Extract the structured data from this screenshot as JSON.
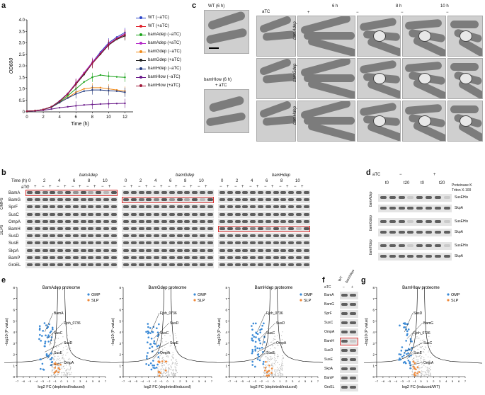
{
  "panels": {
    "a": "a",
    "b": "b",
    "c": "c",
    "d": "d",
    "e": "e",
    "f": "f",
    "g": "g"
  },
  "panel_a": {
    "ylabel": "OD600",
    "xlabel": "Time (h)",
    "xticks": [
      "0",
      "2",
      "4",
      "6",
      "8",
      "10",
      "12"
    ],
    "yticks": [
      "0",
      "0.5",
      "1.0",
      "1.5",
      "2.0",
      "2.5",
      "3.0",
      "3.5",
      "4.0"
    ],
    "legend": [
      {
        "label": "WT (−aTC)",
        "color": "#2a44c8"
      },
      {
        "label": "WT (+aTC)",
        "color": "#e0202a"
      },
      {
        "label": "bamAdep (−aTC)",
        "color": "#1aa31a"
      },
      {
        "label": "bamAdep (+aTC)",
        "color": "#b429c8"
      },
      {
        "label": "bamGdep (−aTC)",
        "color": "#f08a1a"
      },
      {
        "label": "bamGdep (+aTC)",
        "color": "#222222"
      },
      {
        "label": "bamHdep (−aTC)",
        "color": "#223a80"
      },
      {
        "label": "bamHlow (−aTC)",
        "color": "#6a1a8a"
      },
      {
        "label": "bamHlow (+aTC)",
        "color": "#a0183a"
      }
    ]
  },
  "chart_data": [
    {
      "type": "line",
      "title": "",
      "xlabel": "Time (h)",
      "ylabel": "OD600",
      "x": [
        0,
        1,
        2,
        3,
        4,
        5,
        6,
        7,
        8,
        9,
        10,
        11,
        12
      ],
      "xlim": [
        0,
        13
      ],
      "ylim": [
        0,
        4
      ],
      "series": [
        {
          "name": "WT (−aTC)",
          "values": [
            0.03,
            0.05,
            0.1,
            0.22,
            0.48,
            0.8,
            1.25,
            1.7,
            2.15,
            2.6,
            3.0,
            3.25,
            3.45
          ]
        },
        {
          "name": "WT (+aTC)",
          "values": [
            0.03,
            0.05,
            0.1,
            0.22,
            0.46,
            0.78,
            1.2,
            1.65,
            2.1,
            2.55,
            2.95,
            3.2,
            3.35
          ]
        },
        {
          "name": "bamAdep (−aTC)",
          "values": [
            0.03,
            0.05,
            0.1,
            0.2,
            0.42,
            0.7,
            1.0,
            1.3,
            1.5,
            1.6,
            1.55,
            1.52,
            1.5
          ]
        },
        {
          "name": "bamAdep (+aTC)",
          "values": [
            0.03,
            0.05,
            0.1,
            0.22,
            0.47,
            0.8,
            1.25,
            1.7,
            2.15,
            2.55,
            2.95,
            3.2,
            3.4
          ]
        },
        {
          "name": "bamGdep (−aTC)",
          "values": [
            0.03,
            0.05,
            0.1,
            0.2,
            0.4,
            0.62,
            0.85,
            1.0,
            1.05,
            1.05,
            1.0,
            0.95,
            0.9
          ]
        },
        {
          "name": "bamGdep (+aTC)",
          "values": [
            0.03,
            0.05,
            0.1,
            0.22,
            0.46,
            0.78,
            1.2,
            1.62,
            2.1,
            2.5,
            2.9,
            3.15,
            3.3
          ]
        },
        {
          "name": "bamHdep (−aTC)",
          "values": [
            0.03,
            0.05,
            0.1,
            0.2,
            0.4,
            0.6,
            0.78,
            0.9,
            0.95,
            0.95,
            0.92,
            0.9,
            0.85
          ]
        },
        {
          "name": "bamHlow (−aTC)",
          "values": [
            0.03,
            0.04,
            0.07,
            0.12,
            0.18,
            0.22,
            0.26,
            0.3,
            0.32,
            0.34,
            0.35,
            0.36,
            0.37
          ]
        },
        {
          "name": "bamHlow (+aTC)",
          "values": [
            0.03,
            0.05,
            0.1,
            0.22,
            0.46,
            0.78,
            1.22,
            1.66,
            2.1,
            2.52,
            2.92,
            3.18,
            3.35
          ]
        }
      ]
    }
  ],
  "panel_c": {
    "wt_title": "WT (6 h)",
    "bamHlow_title": "bamHlow (6 h)",
    "bamHlow_sub": "+ aTC",
    "aTC_label": "aTC",
    "cols": [
      "6 h",
      "8 h",
      "10 h"
    ],
    "signs": [
      "+",
      "−",
      "−",
      "−"
    ],
    "rows": [
      "bamAdep",
      "bamGdep",
      "bamHdep"
    ]
  },
  "panel_b": {
    "time_label": "Time (h)",
    "aTC_label": "aTC",
    "groups": [
      "bamAdep",
      "bamGdep",
      "bamHdep"
    ],
    "times": [
      "0",
      "2",
      "4",
      "6",
      "8",
      "10"
    ],
    "proteins": [
      "BamA",
      "BamG",
      "SprF",
      "SusC",
      "OmpA",
      "BamH",
      "SusD",
      "SusE",
      "SkpA",
      "BamP",
      "GroEL"
    ],
    "side_labels": [
      "OMPs",
      "SLPs"
    ]
  },
  "panel_d": {
    "aTC_label": "aTC",
    "minus": "−",
    "plus": "+",
    "times": [
      "t0",
      "t20",
      "t0",
      "t20"
    ],
    "protK": "Proteinase K",
    "triton": "Triton X-100",
    "rows": [
      "bamAdep",
      "bamGdep",
      "bamHdep"
    ],
    "row_labels": [
      "SusEHis",
      "SkpA",
      "SusEHis",
      "SkpA",
      "SusEHis",
      "SkpA"
    ]
  },
  "panel_e": [
    {
      "title": "BamAdep proteome",
      "labels": [
        "BamA",
        "Fjoh_0736",
        "SusC",
        "SusD",
        "SusE",
        "OmpA"
      ]
    },
    {
      "title": "BamGdep proteome",
      "labels": [
        "Fjoh_0736",
        "SusD",
        "SusC",
        "SusE",
        "OmpA"
      ]
    },
    {
      "title": "BamHdep proteome",
      "labels": [
        "Fjoh_0736",
        "SusD",
        "SusC",
        "OmpA",
        "SusE"
      ]
    }
  ],
  "volcano": {
    "ylabel": "−log10 (P value)",
    "xlabel_e": "log2 FC (depleted/induced)",
    "xlabel_g": "log2 FC (induced/WT)",
    "legend": [
      "OMP",
      "SLP"
    ],
    "omp_color": "#3b8ad6",
    "slp_color": "#f08a3a",
    "xticks": [
      "−7",
      "−6",
      "−5",
      "−4",
      "−3",
      "−2",
      "−1",
      "0",
      "1",
      "2",
      "3",
      "4",
      "5",
      "6",
      "7"
    ],
    "yticks": [
      "0",
      "1",
      "2",
      "3",
      "4",
      "5",
      "6",
      "7",
      "8"
    ]
  },
  "panel_f": {
    "cols": [
      "WT",
      "bamHlow"
    ],
    "aTC_label": "aTC",
    "aTC_values": [
      "−",
      "+"
    ],
    "proteins": [
      "BamA",
      "BamG",
      "SprF",
      "SusC",
      "OmpA",
      "BamH",
      "SusD",
      "SusE",
      "SkpA",
      "BamP",
      "GroEL"
    ]
  },
  "panel_g": {
    "title": "BamHlow proteome",
    "labels": [
      "SusD",
      "BamG",
      "Fjoh_0736",
      "SusC",
      "SusE",
      "OmpA"
    ]
  }
}
